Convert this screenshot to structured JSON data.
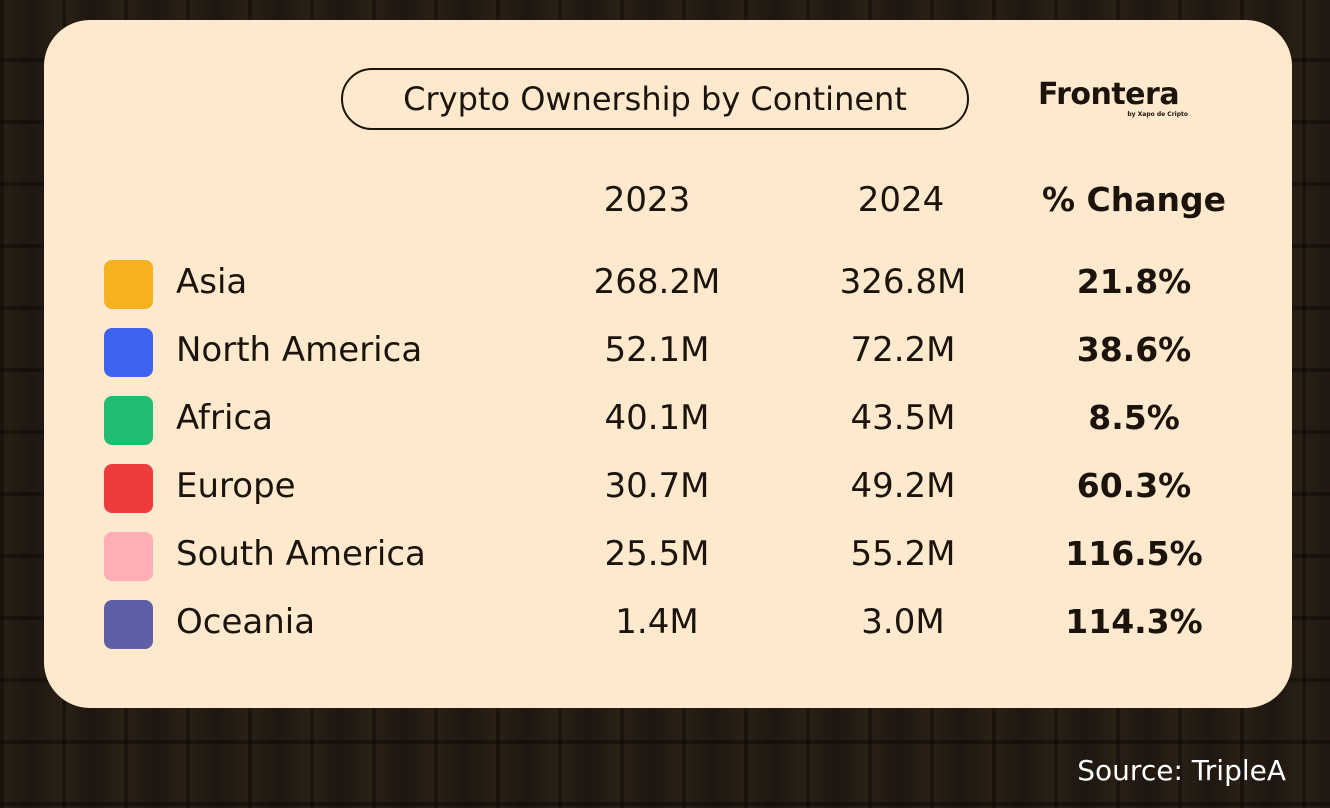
{
  "chart_data": {
    "type": "table",
    "title": "Crypto Ownership by Continent",
    "columns": [
      "",
      "2023",
      "2024",
      "% Change"
    ],
    "rows": [
      {
        "region": "Asia",
        "color": "#f5b11f",
        "y2023": "268.2M",
        "y2024": "326.8M",
        "change": "21.8%"
      },
      {
        "region": "North America",
        "color": "#3d63f0",
        "y2023": "52.1M",
        "y2024": "72.2M",
        "change": "38.6%"
      },
      {
        "region": "Africa",
        "color": "#1fbd73",
        "y2023": "40.1M",
        "y2024": "43.5M",
        "change": "8.5%"
      },
      {
        "region": "Europe",
        "color": "#ee3b3b",
        "y2023": "30.7M",
        "y2024": "49.2M",
        "change": "60.3%"
      },
      {
        "region": "South America",
        "color": "#ffaeb6",
        "y2023": "25.5M",
        "y2024": "55.2M",
        "change": "116.5%"
      },
      {
        "region": "Oceania",
        "color": "#5f5fa8",
        "y2023": "1.4M",
        "y2024": "3.0M",
        "change": "114.3%"
      }
    ]
  },
  "brand": {
    "name": "Frontera",
    "tagline": "by Xapo de Cripto"
  },
  "source": "Source: TripleA"
}
